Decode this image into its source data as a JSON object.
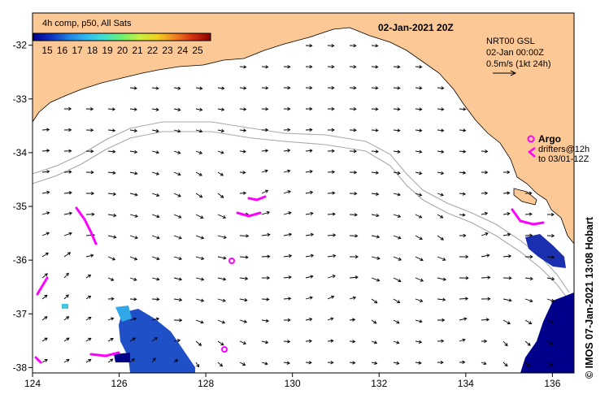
{
  "title": "02-Jan-2021 20Z",
  "colorbar": {
    "title": "4h comp, p50, All Sats",
    "ticks": [
      "15",
      "16",
      "17",
      "18",
      "19",
      "20",
      "21",
      "22",
      "23",
      "24",
      "25"
    ],
    "colors": [
      "#00008b",
      "#1030c0",
      "#2080e0",
      "#30b8f0",
      "#40e0d0",
      "#70f070",
      "#c8f040",
      "#f0d020",
      "#f08020",
      "#d03010",
      "#8b0000"
    ]
  },
  "legend": {
    "product": "NRT00 GSL",
    "time": "02-Jan 00:00Z",
    "scale": "0.5m/s (1kt 24h)"
  },
  "argo": {
    "label": "Argo",
    "drifters_line1": "drifters@12h",
    "drifters_line2": "to 03/01-12Z"
  },
  "axes": {
    "x_ticks": [
      "124",
      "126",
      "128",
      "130",
      "132",
      "134",
      "136"
    ],
    "y_ticks": [
      "-32",
      "-33",
      "-34",
      "-35",
      "-36",
      "-37",
      "-38"
    ],
    "lon_range": [
      124,
      136.5
    ],
    "lat_range": [
      -38.1,
      -31.4
    ]
  },
  "credit": "© IMOS 07-Jan-2021 13:08 Hobart",
  "colors": {
    "land": "#fcc896",
    "sea": "#ffffff",
    "bathymetry": "#a8a8a8",
    "argo": "#ff00ff",
    "cold_sst": "#00008b"
  }
}
